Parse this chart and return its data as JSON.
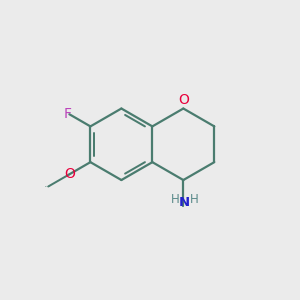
{
  "background_color": "#ebebeb",
  "bond_color": "#4a7c6f",
  "o_color": "#e8003c",
  "n_color": "#2222cc",
  "f_color": "#bb44bb",
  "h_color": "#5a8a8a",
  "figsize": [
    3.0,
    3.0
  ],
  "dpi": 100,
  "lw": 1.6,
  "xlim": [
    0,
    10
  ],
  "ylim": [
    0,
    10
  ]
}
